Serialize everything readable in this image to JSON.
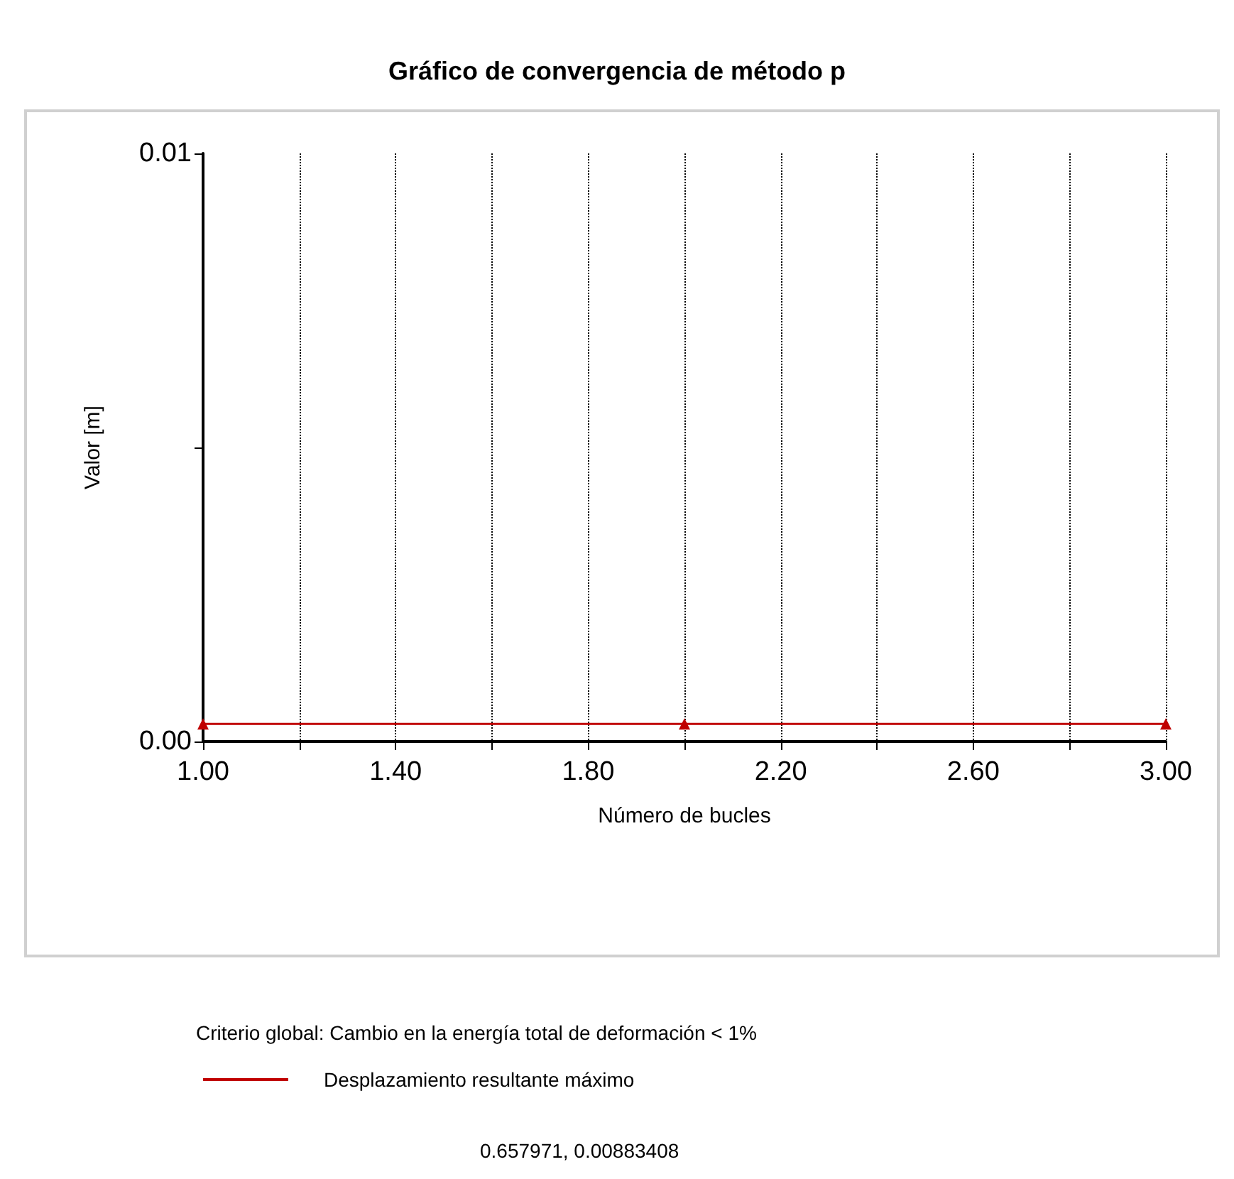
{
  "chart_data": {
    "type": "line",
    "title": "Gráfico de convergencia de método p",
    "xlabel": "Número de bucles",
    "ylabel": "Valor [m]",
    "x": [
      1,
      2,
      3
    ],
    "series": [
      {
        "name": "Desplazamiento resultante máximo",
        "color": "#c00000",
        "values": [
          0.0003,
          0.0003,
          0.0003
        ]
      }
    ],
    "xlim": [
      1,
      3
    ],
    "xticks": [
      {
        "value": 1,
        "label": "1.00"
      },
      {
        "value": 1.2,
        "label": null
      },
      {
        "value": 1.4,
        "label": "1.40"
      },
      {
        "value": 1.6,
        "label": null
      },
      {
        "value": 1.8,
        "label": "1.80"
      },
      {
        "value": 2,
        "label": null
      },
      {
        "value": 2.2,
        "label": "2.20"
      },
      {
        "value": 2.4,
        "label": null
      },
      {
        "value": 2.6,
        "label": "2.60"
      },
      {
        "value": 2.8,
        "label": null
      },
      {
        "value": 3,
        "label": "3.00"
      }
    ],
    "ylim": [
      0,
      0.01
    ],
    "yticks": [
      {
        "value": 0,
        "label": "0.00"
      },
      {
        "value": 0.005,
        "label": null
      },
      {
        "value": 0.01,
        "label": "0.01"
      }
    ],
    "grid": "x",
    "legend": "bottom",
    "marker": "triangle",
    "line_style": "solid",
    "annotations": [
      "Criterio global: Cambio en la energía total de deformación < 1%",
      "0.657971, 0.00883408"
    ]
  }
}
